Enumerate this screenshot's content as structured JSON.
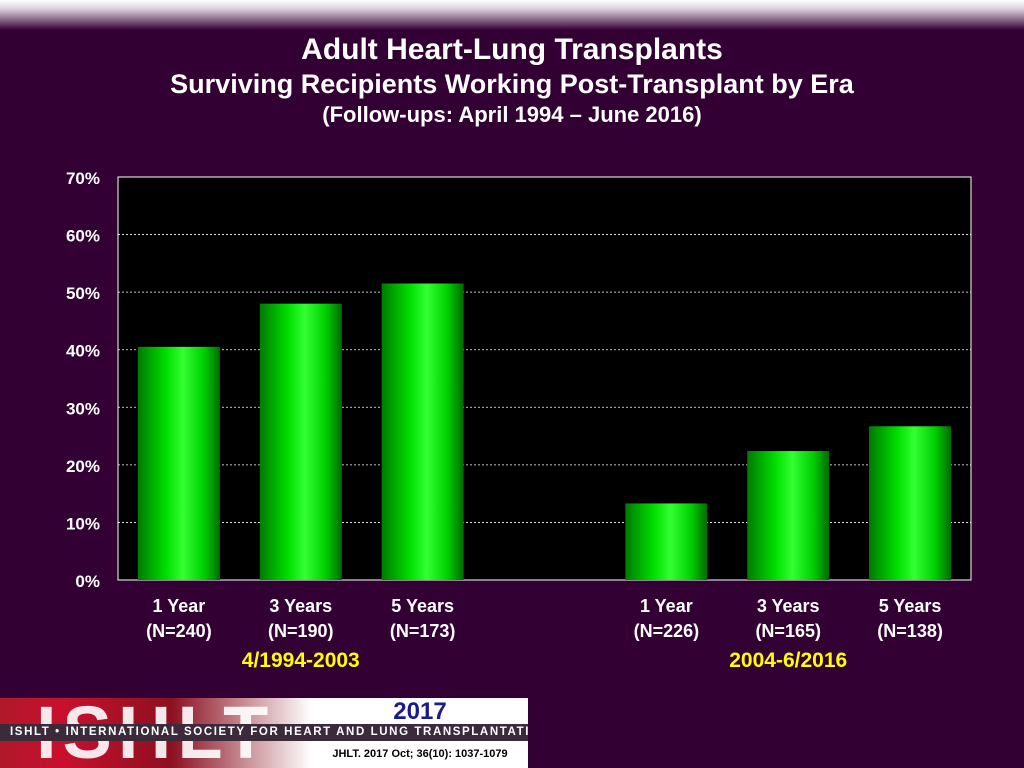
{
  "header": {
    "title": "Adult Heart-Lung Transplants",
    "subtitle": "Surviving Recipients Working Post-Transplant by Era",
    "subsubtitle": "(Follow-ups: April 1994 – June 2016)"
  },
  "chart_data": {
    "type": "bar",
    "groups": [
      {
        "name": "4/1994-2003",
        "bars": [
          {
            "label": "1 Year",
            "n": "(N=240)",
            "value": 40.5
          },
          {
            "label": "3 Years",
            "n": "(N=190)",
            "value": 48.0
          },
          {
            "label": "5 Years",
            "n": "(N=173)",
            "value": 51.5
          }
        ]
      },
      {
        "name": "2004-6/2016",
        "bars": [
          {
            "label": "1 Year",
            "n": "(N=226)",
            "value": 13.3
          },
          {
            "label": "3 Years",
            "n": "(N=165)",
            "value": 22.4
          },
          {
            "label": "5 Years",
            "n": "(N=138)",
            "value": 26.7
          }
        ]
      }
    ],
    "ylim": [
      0,
      70
    ],
    "yticks": [
      "0%",
      "10%",
      "20%",
      "30%",
      "40%",
      "50%",
      "60%",
      "70%"
    ],
    "grid": true,
    "bar_color": "#00ff00",
    "group_label_color": "#ffff00"
  },
  "footer": {
    "logo_text": "ISHLT",
    "society": "ISHLT • INTERNATIONAL SOCIETY FOR HEART AND LUNG TRANSPLANTATION",
    "year": "2017",
    "citation": "JHLT. 2017 Oct; 36(10): 1037-1079"
  }
}
